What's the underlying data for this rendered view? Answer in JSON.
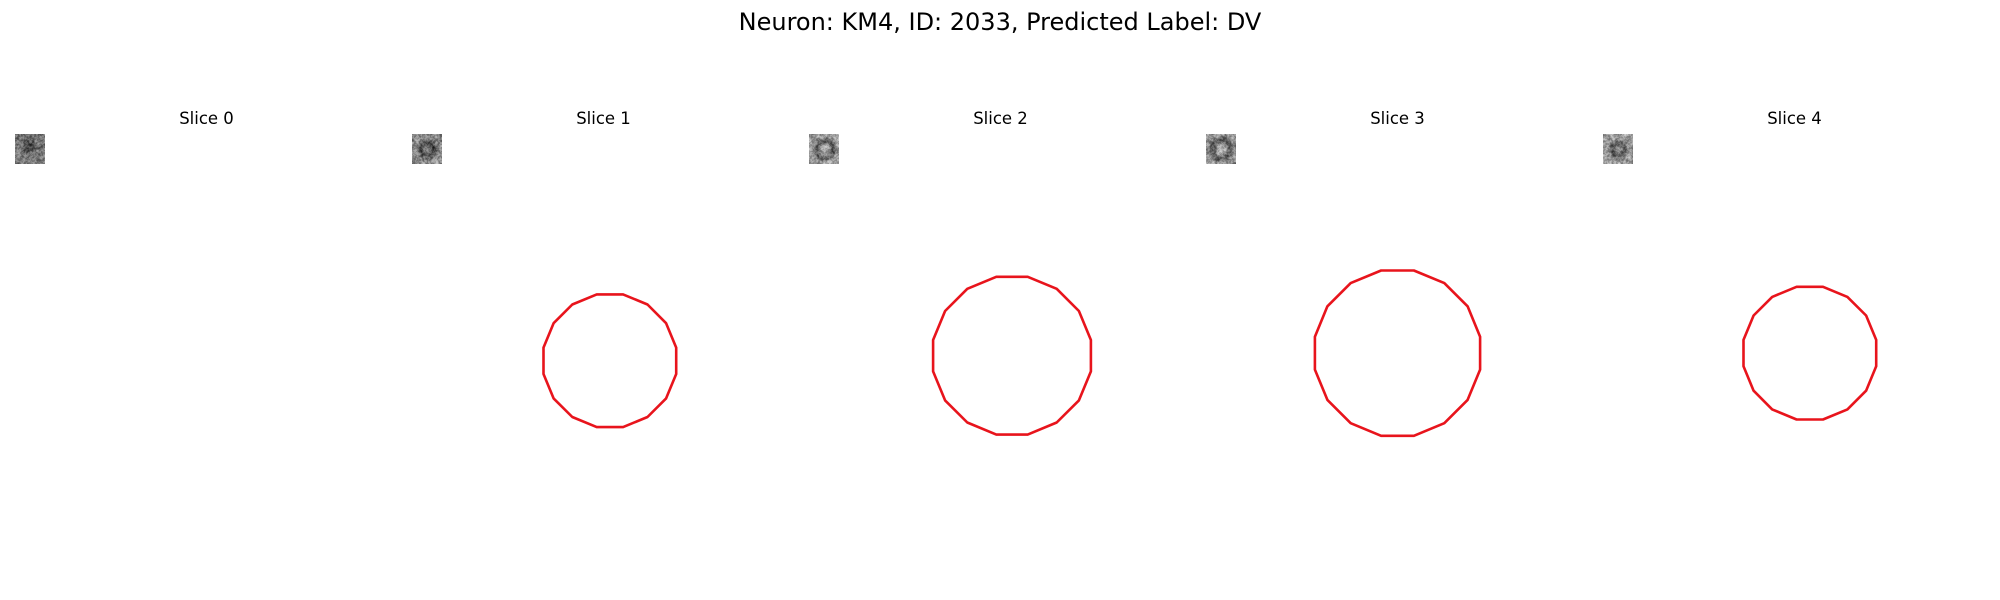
{
  "figure": {
    "title": "Neuron: KM4, ID: 2033, Predicted Label: DV"
  },
  "panels": [
    {
      "title": "Slice 0",
      "has_contour": false
    },
    {
      "title": "Slice 1",
      "has_contour": true
    },
    {
      "title": "Slice 2",
      "has_contour": true
    },
    {
      "title": "Slice 3",
      "has_contour": true
    },
    {
      "title": "Slice 4",
      "has_contour": true
    }
  ],
  "colors": {
    "contour": "#e8141c",
    "background": "#ffffff"
  }
}
